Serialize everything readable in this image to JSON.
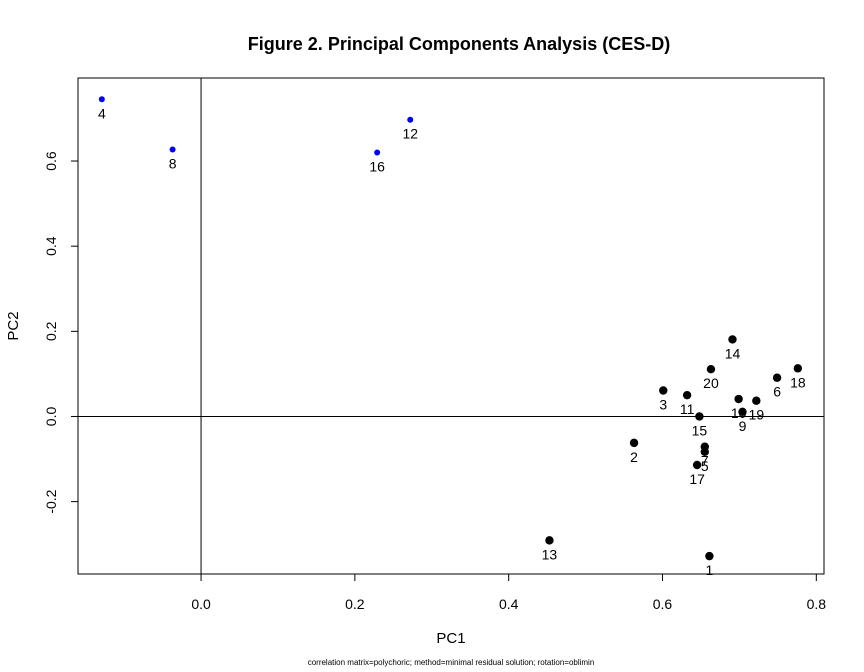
{
  "chart_data": {
    "type": "scatter",
    "title": "Figure 2. Principal Components Analysis (CES-D)",
    "xlabel": "PC1",
    "ylabel": "PC2",
    "footnote": "correlation matrix=polychoric; method=minimal residual solution; rotation=oblimin",
    "xlim": [
      -0.16,
      0.81
    ],
    "ylim": [
      -0.37,
      0.795
    ],
    "xticks": [
      {
        "value": 0.0,
        "label": "0.0"
      },
      {
        "value": 0.2,
        "label": "0.2"
      },
      {
        "value": 0.4,
        "label": "0.4"
      },
      {
        "value": 0.6,
        "label": "0.6"
      },
      {
        "value": 0.8,
        "label": "0.8"
      }
    ],
    "yticks": [
      {
        "value": -0.2,
        "label": "-0.2"
      },
      {
        "value": 0.0,
        "label": "0.0"
      },
      {
        "value": 0.2,
        "label": "0.2"
      },
      {
        "value": 0.4,
        "label": "0.4"
      },
      {
        "value": 0.6,
        "label": "0.6"
      }
    ],
    "reference_lines": {
      "x": 0,
      "y": 0
    },
    "colors": {
      "positive_items": "#000000",
      "reverse_items": "#0000ff"
    },
    "points": [
      {
        "label": "1",
        "x": 0.661,
        "y": -0.328,
        "group": "positive_items"
      },
      {
        "label": "2",
        "x": 0.563,
        "y": -0.062,
        "group": "positive_items"
      },
      {
        "label": "3",
        "x": 0.601,
        "y": 0.061,
        "group": "positive_items"
      },
      {
        "label": "4",
        "x": -0.129,
        "y": 0.745,
        "group": "reverse_items"
      },
      {
        "label": "5",
        "x": 0.655,
        "y": -0.083,
        "group": "positive_items"
      },
      {
        "label": "6",
        "x": 0.749,
        "y": 0.091,
        "group": "positive_items"
      },
      {
        "label": "7",
        "x": 0.655,
        "y": -0.071,
        "group": "positive_items"
      },
      {
        "label": "8",
        "x": -0.037,
        "y": 0.627,
        "group": "reverse_items"
      },
      {
        "label": "9",
        "x": 0.704,
        "y": 0.011,
        "group": "positive_items"
      },
      {
        "label": "10",
        "x": 0.699,
        "y": 0.041,
        "group": "positive_items"
      },
      {
        "label": "11",
        "x": 0.632,
        "y": 0.05,
        "group": "positive_items"
      },
      {
        "label": "12",
        "x": 0.272,
        "y": 0.697,
        "group": "reverse_items"
      },
      {
        "label": "13",
        "x": 0.453,
        "y": -0.291,
        "group": "positive_items"
      },
      {
        "label": "14",
        "x": 0.691,
        "y": 0.181,
        "group": "positive_items"
      },
      {
        "label": "15",
        "x": 0.648,
        "y": 0.0,
        "group": "positive_items"
      },
      {
        "label": "16",
        "x": 0.229,
        "y": 0.62,
        "group": "reverse_items"
      },
      {
        "label": "17",
        "x": 0.645,
        "y": -0.114,
        "group": "positive_items"
      },
      {
        "label": "18",
        "x": 0.776,
        "y": 0.113,
        "group": "positive_items"
      },
      {
        "label": "19",
        "x": 0.722,
        "y": 0.037,
        "group": "positive_items"
      },
      {
        "label": "20",
        "x": 0.663,
        "y": 0.111,
        "group": "positive_items"
      }
    ]
  }
}
